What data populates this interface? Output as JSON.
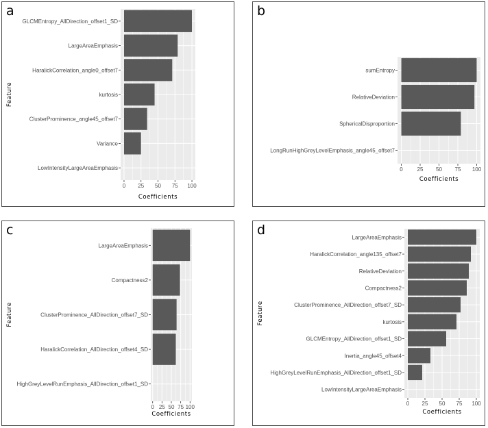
{
  "chart_data": [
    {
      "panel": "a",
      "type": "bar",
      "orientation": "horizontal",
      "xlabel": "Coefficients",
      "ylabel": "Feature",
      "xlim": [
        0,
        100
      ],
      "xticks": [
        0,
        25,
        50,
        75,
        100
      ],
      "categories": [
        "GLCMEntropy_AllDirection_offset1_SD",
        "LargeAreaEmphasis",
        "HaralickCorrelation_angle0_offset7",
        "kurtosis",
        "ClusterProminence_angle45_offset7",
        "Variance",
        "LowIntensityLargeAreaEmphasis"
      ],
      "values": [
        100,
        79,
        71,
        45,
        34,
        25,
        0
      ]
    },
    {
      "panel": "b",
      "type": "bar",
      "orientation": "horizontal",
      "xlabel": "Coefficients",
      "ylabel": "",
      "xlim": [
        0,
        100
      ],
      "xticks": [
        0,
        25,
        50,
        75,
        100
      ],
      "categories": [
        "sumEntropy",
        "RelativeDeviation",
        "SphericalDisproportion",
        "LongRunHighGreyLevelEmphasis_angle45_offset7"
      ],
      "values": [
        100,
        97,
        79,
        0
      ]
    },
    {
      "panel": "c",
      "type": "bar",
      "orientation": "horizontal",
      "xlabel": "Coefficients",
      "ylabel": "Feature",
      "xlim": [
        0,
        100
      ],
      "xticks": [
        0,
        25,
        50,
        75,
        100
      ],
      "categories": [
        "LargeAreaEmphasis",
        "Compactness2",
        "ClusterProminence_AllDirection_offset7_SD",
        "HaralickCorrelation_AllDirection_offset4_SD",
        "HighGreyLevelRunEmphasis_AllDirection_offset1_SD"
      ],
      "values": [
        100,
        73,
        64,
        62,
        0
      ]
    },
    {
      "panel": "d",
      "type": "bar",
      "orientation": "horizontal",
      "xlabel": "Coefficients",
      "ylabel": "Feature",
      "xlim": [
        0,
        100
      ],
      "xticks": [
        0,
        25,
        50,
        75,
        100
      ],
      "categories": [
        "LargeAreaEmphasis",
        "HaralickCorrelation_angle135_offset7",
        "RelativeDeviation",
        "Compactness2",
        "ClusterProminence_AllDirection_offset7_SD",
        "kurtosis",
        "GLCMEntropy_AllDirection_offset1_SD",
        "Inertia_angle45_offset4",
        "HighGreyLevelRunEmphasis_AllDirection_offset1_SD",
        "LowIntensityLargeAreaEmphasis"
      ],
      "values": [
        100,
        92,
        89,
        86,
        77,
        71,
        56,
        33,
        21,
        0
      ]
    }
  ],
  "colors": {
    "panel_bg": "#ebebeb",
    "grid": "#ffffff",
    "bar": "#595959",
    "tick": "#333333"
  }
}
